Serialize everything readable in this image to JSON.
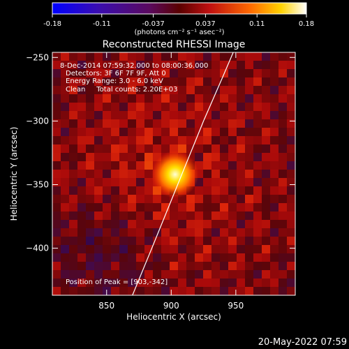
{
  "title": "Reconstructed RHESSI Image",
  "colorbar": {
    "ticks": [
      "-0.18",
      "-0.11",
      "-0.037",
      "0.037",
      "0.11",
      "0.18"
    ],
    "tick_values": [
      -0.18,
      -0.11,
      -0.037,
      0.037,
      0.11,
      0.18
    ],
    "range": [
      -0.18,
      0.18
    ],
    "unit_label": "(photons cm⁻² s⁻¹ asec⁻²)"
  },
  "annotations": {
    "time": "8-Dec-2014 07:59:32.000 to 08:00:36.000",
    "detectors": "Detectors: 3F 6F 7F 9F, Att 0",
    "energy": "Energy Range: 3.0 - 6.0 keV",
    "clean": "Clean     Total counts: 2.20E+03",
    "peak": "Position of Peak = [903,-342]"
  },
  "footer_timestamp": "20-May-2022 07:59",
  "chart_data": {
    "type": "heatmap",
    "title": "Reconstructed RHESSI Image",
    "xlabel": "Heliocentric X (arcsec)",
    "ylabel": "Heliocentric Y (arcsec)",
    "xlim": [
      808,
      996
    ],
    "ylim": [
      -437,
      -246
    ],
    "xticks": [
      850,
      900,
      950
    ],
    "yticks": [
      -250,
      -300,
      -350,
      -400
    ],
    "xtick_labels": [
      "850",
      "900",
      "950"
    ],
    "ytick_labels": [
      "−250",
      "−300",
      "−350",
      "−400"
    ],
    "peak": {
      "x": 903,
      "y": -342
    },
    "limb_curve": [
      [
        870,
        -437
      ],
      [
        885,
        -400
      ],
      [
        905,
        -350
      ],
      [
        925,
        -300
      ],
      [
        940,
        -265
      ],
      [
        948,
        -246
      ]
    ],
    "grid": false,
    "colormap": "blue-purple-red-yellow-white"
  }
}
